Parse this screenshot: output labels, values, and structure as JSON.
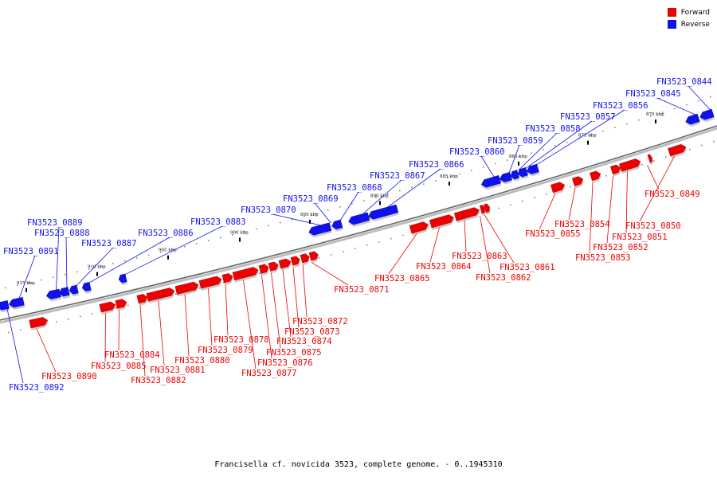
{
  "caption": "Francisella cf. novicida 3523, complete genome. - 0..1945310",
  "legend": [
    {
      "label": "Forward",
      "color": "#ee0000"
    },
    {
      "label": "Reverse",
      "color": "#1111ee"
    }
  ],
  "colors": {
    "forward": "#ee0000",
    "reverse": "#1111ee"
  },
  "ticks": [
    "870 kbp",
    "875 kbp",
    "880 kbp",
    "885 kbp",
    "890 kbp",
    "895 kbp",
    "900 kbp",
    "905 kbp",
    "910 kbp",
    "915 kbp"
  ],
  "genes": [
    {
      "label": "FN3523_0844",
      "strand": "reverse"
    },
    {
      "label": "FN3523_0845",
      "strand": "reverse"
    },
    {
      "label": "FN3523_0849",
      "strand": "forward"
    },
    {
      "label": "FN3523_0850",
      "strand": "forward"
    },
    {
      "label": "FN3523_0851",
      "strand": "forward"
    },
    {
      "label": "FN3523_0852",
      "strand": "forward"
    },
    {
      "label": "FN3523_0853",
      "strand": "forward"
    },
    {
      "label": "FN3523_0854",
      "strand": "forward"
    },
    {
      "label": "FN3523_0855",
      "strand": "forward"
    },
    {
      "label": "FN3523_0856",
      "strand": "reverse"
    },
    {
      "label": "FN3523_0857",
      "strand": "reverse"
    },
    {
      "label": "FN3523_0858",
      "strand": "reverse"
    },
    {
      "label": "FN3523_0859",
      "strand": "reverse"
    },
    {
      "label": "FN3523_0860",
      "strand": "reverse"
    },
    {
      "label": "FN3523_0861",
      "strand": "forward"
    },
    {
      "label": "FN3523_0862",
      "strand": "forward"
    },
    {
      "label": "FN3523_0863",
      "strand": "forward"
    },
    {
      "label": "FN3523_0864",
      "strand": "forward"
    },
    {
      "label": "FN3523_0865",
      "strand": "forward"
    },
    {
      "label": "FN3523_0866",
      "strand": "reverse"
    },
    {
      "label": "FN3523_0867",
      "strand": "reverse"
    },
    {
      "label": "FN3523_0868",
      "strand": "reverse"
    },
    {
      "label": "FN3523_0869",
      "strand": "reverse"
    },
    {
      "label": "FN3523_0870",
      "strand": "reverse"
    },
    {
      "label": "FN3523_0871",
      "strand": "forward"
    },
    {
      "label": "FN3523_0872",
      "strand": "forward"
    },
    {
      "label": "FN3523_0873",
      "strand": "forward"
    },
    {
      "label": "FN3523_0874",
      "strand": "forward"
    },
    {
      "label": "FN3523_0875",
      "strand": "forward"
    },
    {
      "label": "FN3523_0876",
      "strand": "forward"
    },
    {
      "label": "FN3523_0877",
      "strand": "forward"
    },
    {
      "label": "FN3523_0878",
      "strand": "forward"
    },
    {
      "label": "FN3523_0879",
      "strand": "forward"
    },
    {
      "label": "FN3523_0880",
      "strand": "forward"
    },
    {
      "label": "FN3523_0881",
      "strand": "forward"
    },
    {
      "label": "FN3523_0882",
      "strand": "forward"
    },
    {
      "label": "FN3523_0883",
      "strand": "reverse"
    },
    {
      "label": "FN3523_0884",
      "strand": "forward"
    },
    {
      "label": "FN3523_0885",
      "strand": "forward"
    },
    {
      "label": "FN3523_0886",
      "strand": "reverse"
    },
    {
      "label": "FN3523_0887",
      "strand": "reverse"
    },
    {
      "label": "FN3523_0888",
      "strand": "reverse"
    },
    {
      "label": "FN3523_0889",
      "strand": "reverse"
    },
    {
      "label": "FN3523_0890",
      "strand": "forward"
    },
    {
      "label": "FN3523_0891",
      "strand": "reverse"
    },
    {
      "label": "FN3523_0892",
      "strand": "reverse"
    }
  ]
}
